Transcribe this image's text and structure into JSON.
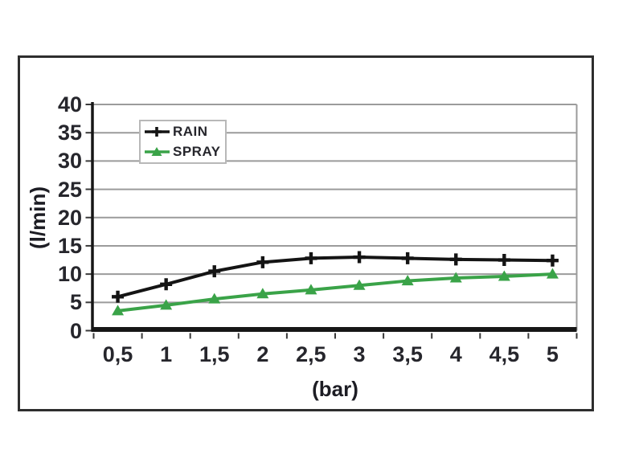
{
  "figure": {
    "background": "#ffffff",
    "frame_border_color": "#2e2e2e"
  },
  "colors": {
    "gridline": "#9b9b9b",
    "axis": "#161616",
    "tick": "#3a3a3a",
    "text": "#26262c",
    "legend_border": "#b8b8b8",
    "rain": "#141414",
    "spray": "#3aa348"
  },
  "chart_data": {
    "type": "line",
    "title": "",
    "xlabel": "(bar)",
    "ylabel": "(l/min)",
    "x_values": [
      0.5,
      1,
      1.5,
      2,
      2.5,
      3,
      3.5,
      4,
      4.5,
      5
    ],
    "x_tick_labels": [
      "0,5",
      "1",
      "1,5",
      "2",
      "2,5",
      "3",
      "3,5",
      "4",
      "4,5",
      "5"
    ],
    "ylim": [
      0,
      40
    ],
    "y_tick_values": [
      0,
      5,
      10,
      15,
      20,
      25,
      30,
      35,
      40
    ],
    "y_tick_labels": [
      "0",
      "5",
      "10",
      "15",
      "20",
      "25",
      "30",
      "35",
      "40"
    ],
    "grid": true,
    "legend_position": "top-left-inside",
    "series": [
      {
        "name": "RAIN",
        "color": "#141414",
        "marker": "plus",
        "values": [
          6,
          8.2,
          10.5,
          12.1,
          12.8,
          13,
          12.8,
          12.6,
          12.5,
          12.4
        ]
      },
      {
        "name": "SPRAY",
        "color": "#3aa348",
        "marker": "triangle",
        "values": [
          3.5,
          4.5,
          5.6,
          6.5,
          7.2,
          8,
          8.8,
          9.3,
          9.6,
          10
        ]
      }
    ]
  }
}
